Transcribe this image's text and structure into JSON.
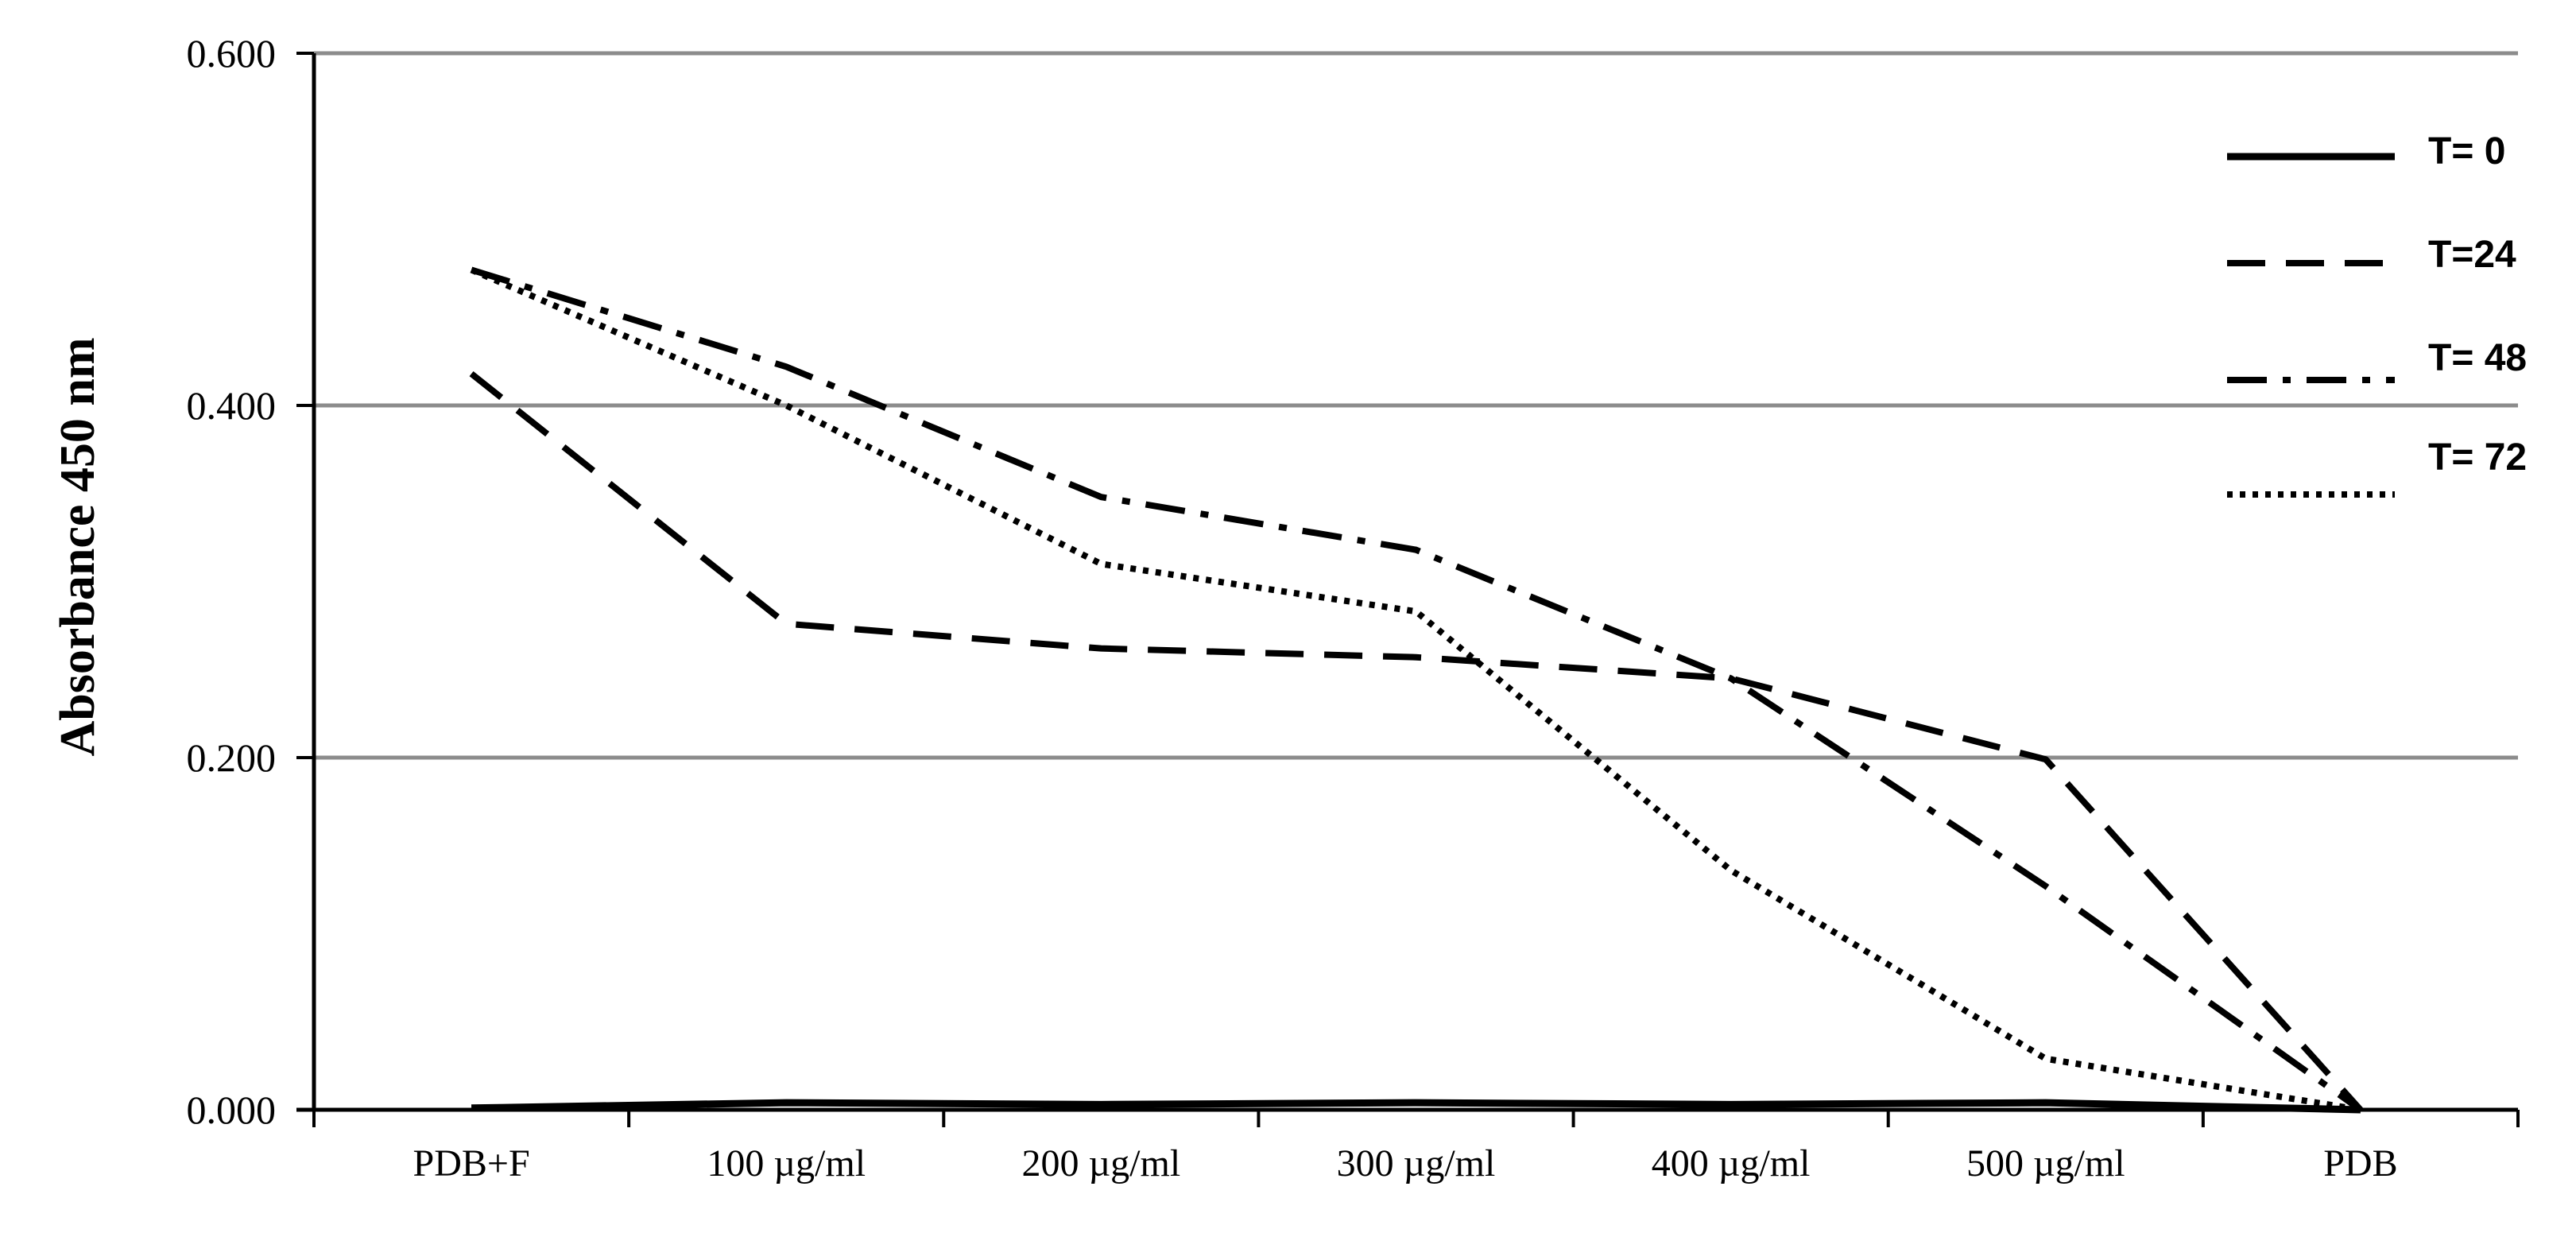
{
  "chart_data": {
    "type": "line",
    "title": "",
    "xlabel": "",
    "ylabel": "Absorbance  450 nm",
    "ylim": [
      0,
      0.6
    ],
    "yticks": [
      "0.000",
      "0.200",
      "0.400",
      "0.600"
    ],
    "grid": true,
    "legend_position": "top-right",
    "categories": [
      "PDB+F",
      "100 µg/ml",
      "200 µg/ml",
      "300 µg/ml",
      "400 µg/ml",
      "500 µg/ml",
      "PDB"
    ],
    "series": [
      {
        "name": "T= 0",
        "style": "solid",
        "values": [
          0.001,
          0.004,
          0.003,
          0.004,
          0.003,
          0.004,
          0.0
        ]
      },
      {
        "name": "T=24",
        "style": "dashed",
        "values": [
          0.418,
          0.276,
          0.262,
          0.257,
          0.245,
          0.199,
          0.0
        ]
      },
      {
        "name": "T= 48",
        "style": "dashdot",
        "values": [
          0.477,
          0.422,
          0.348,
          0.318,
          0.245,
          0.127,
          0.0
        ]
      },
      {
        "name": "T= 72",
        "style": "dotted",
        "values": [
          0.477,
          0.4,
          0.31,
          0.283,
          0.136,
          0.029,
          0.0
        ]
      }
    ]
  }
}
